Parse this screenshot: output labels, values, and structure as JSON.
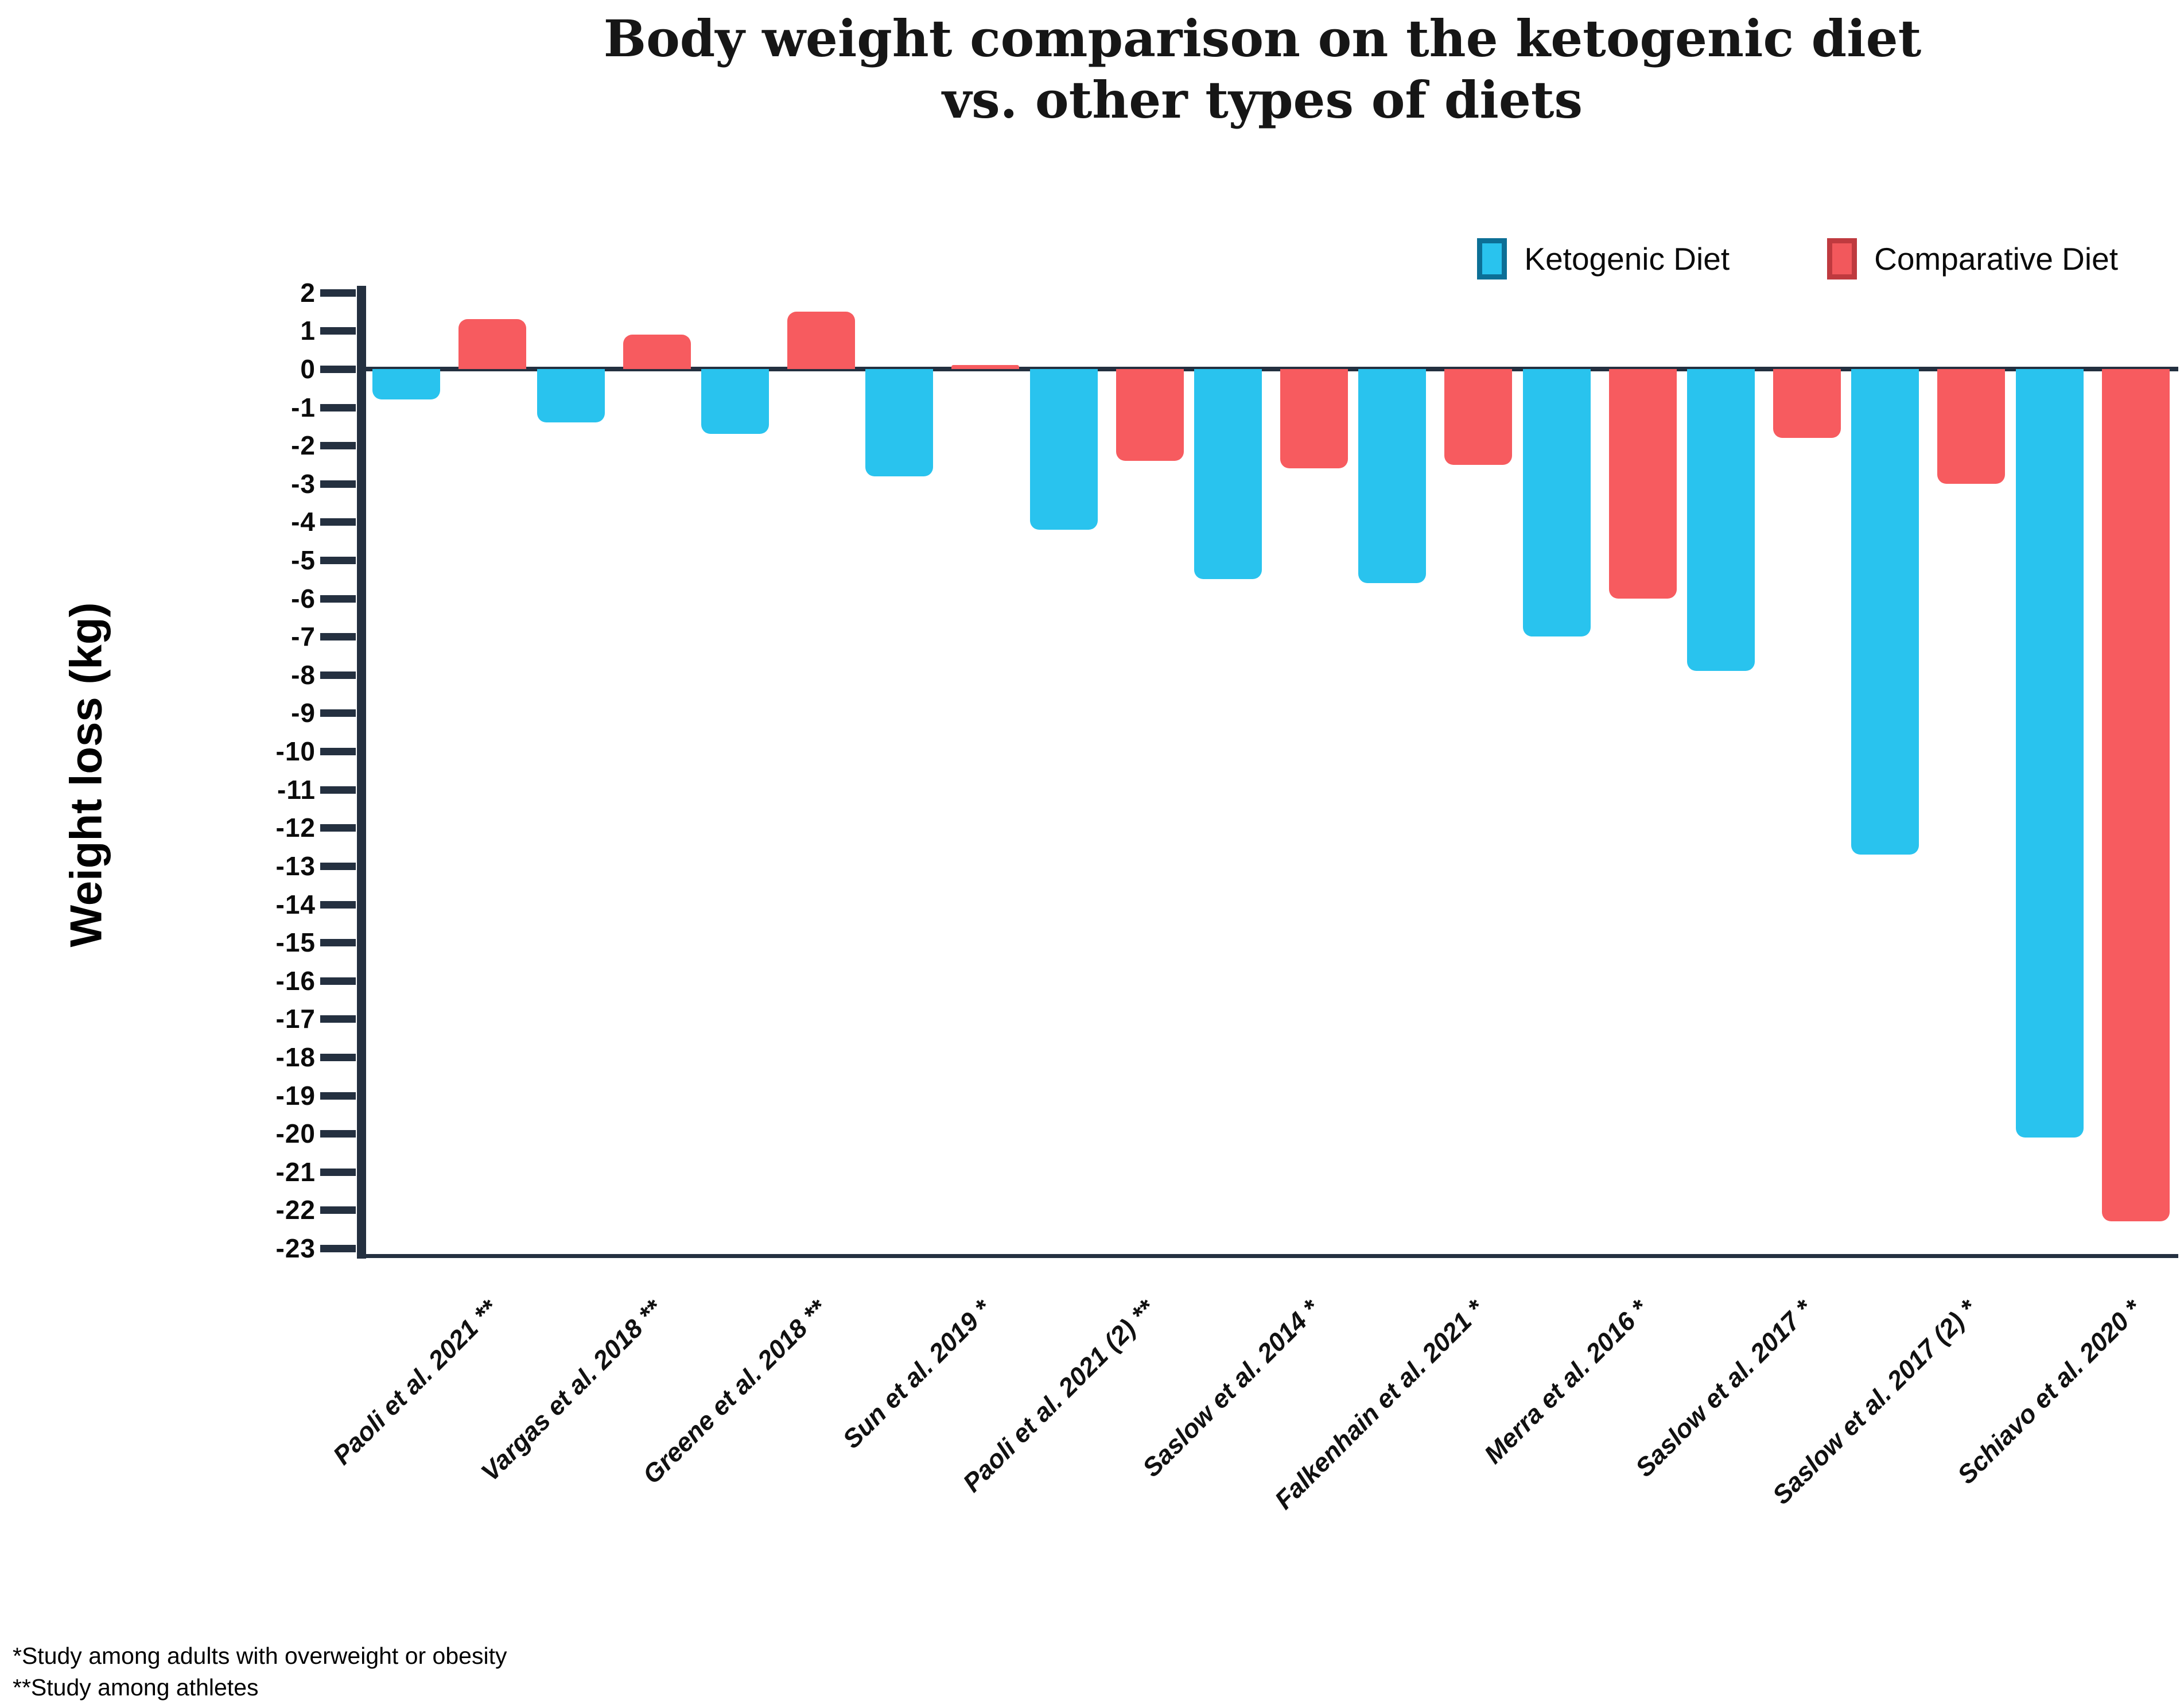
{
  "title": {
    "line1": "Body weight comparison on the ketogenic diet",
    "line2": "vs. other types of diets"
  },
  "legend": {
    "items": [
      {
        "label": "Ketogenic Diet",
        "color": "#29C3EE",
        "border": "#0C6F96"
      },
      {
        "label": "Comparative Diet",
        "color": "#F2585C",
        "border": "#BF3A3F"
      }
    ]
  },
  "footnotes": {
    "line1": "*Study among adults with overweight or obesity",
    "line2": "**Study among athletes"
  },
  "chart_data": {
    "type": "bar",
    "title": "Body weight comparison on the ketogenic diet vs. other types of diets",
    "ylabel": "Weight loss (kg)",
    "xlabel": "",
    "ylim": [
      -23,
      2
    ],
    "grid": false,
    "legend_position": "top-right",
    "yticks": [
      2,
      1,
      0,
      -1,
      -2,
      -3,
      -4,
      -5,
      -6,
      -7,
      -8,
      -9,
      -10,
      -11,
      -12,
      -13,
      -14,
      -15,
      -16,
      -17,
      -18,
      -19,
      -20,
      -21,
      -22,
      -23
    ],
    "categories": [
      "Paoli et al. 2021 **",
      "Vargas et al. 2018 **",
      "Greene et al. 2018 **",
      "Sun et al. 2019 *",
      "Paoli et al. 2021 (2) **",
      "Saslow et al. 2014 *",
      "Falkenhain et al. 2021 *",
      "Merra et al. 2016 *",
      "Saslow et al. 2017 *",
      "Saslow et al. 2017 (2) *",
      "Schiavo et al. 2020 *"
    ],
    "series": [
      {
        "name": "Ketogenic Diet",
        "color": "#29C3EE",
        "values": [
          -0.8,
          -1.4,
          -1.7,
          -2.8,
          -4.2,
          -5.5,
          -5.6,
          -7.0,
          -7.9,
          -12.7,
          -20.1
        ]
      },
      {
        "name": "Comparative Diet",
        "color": "#F75B5F",
        "values": [
          1.3,
          0.9,
          1.5,
          0.1,
          -2.4,
          -2.6,
          -2.5,
          -6.0,
          -1.8,
          -3.0,
          -22.3
        ]
      }
    ]
  }
}
